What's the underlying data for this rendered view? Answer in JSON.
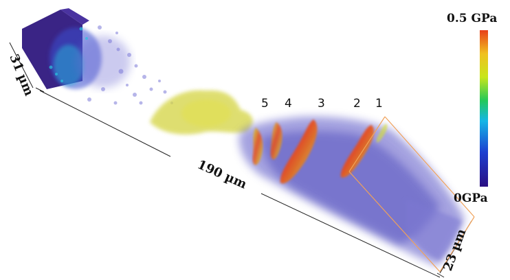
{
  "labels": {
    "depth_31": "31 µm",
    "length_190": "190 µm",
    "width_23": "23 µm"
  },
  "slice_numbers": [
    "5",
    "4",
    "3",
    "2",
    "1"
  ],
  "colorbar": {
    "max_label": "0.5 GPa",
    "min_label": "0GPa",
    "gradient_colors": [
      "#2a0f82",
      "#1d3fd0",
      "#14b6e6",
      "#23c85a",
      "#c8e61a",
      "#f0c020",
      "#e8401a"
    ]
  },
  "colors": {
    "block_purple": "#3a2485",
    "volume_blue": "#5a56c6",
    "yellow_cloud": "#d8d84a",
    "bounding_box": "#f0a25a",
    "hot_band_red": "#e8401a"
  }
}
